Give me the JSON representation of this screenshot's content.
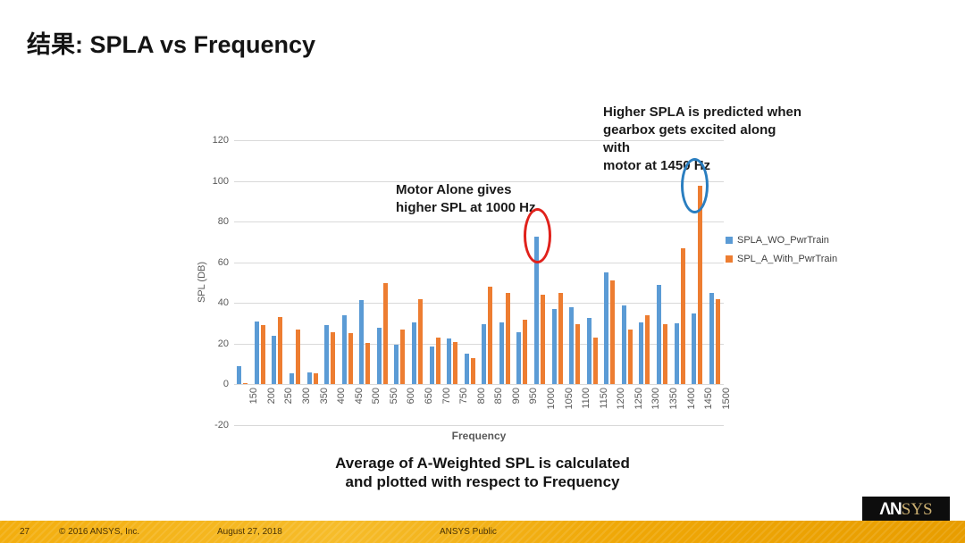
{
  "slide": {
    "title": "结果: SPLA vs Frequency",
    "caption": "Average of A-Weighted SPL is calculated\nand plotted with respect to Frequency"
  },
  "chart_data": {
    "type": "bar",
    "categories": [
      "150",
      "200",
      "250",
      "300",
      "350",
      "400",
      "450",
      "500",
      "550",
      "600",
      "650",
      "700",
      "750",
      "800",
      "850",
      "900",
      "950",
      "1000",
      "1050",
      "1100",
      "1150",
      "1200",
      "1250",
      "1300",
      "1350",
      "1400",
      "1450",
      "1500"
    ],
    "series": [
      {
        "name": "SPLA_WO_PwrTrain",
        "color": "#5B9BD5",
        "values": [
          9,
          31,
          24,
          5.5,
          6,
          29,
          34,
          41.5,
          28,
          19.5,
          30.5,
          18.5,
          22.5,
          15,
          29.5,
          30.5,
          25.5,
          72.5,
          37,
          38,
          32.5,
          55,
          39,
          30.5,
          49,
          30,
          35,
          45
        ]
      },
      {
        "name": "SPL_A_With_PwrTrain",
        "color": "#ED7D31",
        "values": [
          0.5,
          29,
          33,
          27,
          5.5,
          25.5,
          25,
          20.5,
          50,
          27,
          42,
          23,
          21,
          13,
          48,
          45,
          32,
          44,
          45,
          29.5,
          23,
          51,
          27,
          34,
          29.5,
          67,
          97.5,
          42
        ]
      }
    ],
    "title": "",
    "xlabel": "Frequency",
    "ylabel": "SPL (DB)",
    "ylim": [
      -20,
      120
    ],
    "yticks": [
      120,
      100,
      80,
      60,
      40,
      20,
      0,
      -20
    ],
    "grid": true,
    "legend_position": "right",
    "annotations": [
      {
        "text": "Motor Alone gives\nhigher SPL at 1000 Hz",
        "shape": "ellipse",
        "color": "#E0211B",
        "target_category": "1000",
        "target_series": "SPLA_WO_PwrTrain"
      },
      {
        "text": "Higher SPLA is predicted when\ngearbox gets excited along with\nmotor at 1450 Hz",
        "shape": "ellipse",
        "color": "#2A7EC0",
        "target_category": "1450",
        "target_series": "SPL_A_With_PwrTrain"
      }
    ]
  },
  "footer": {
    "page_number": "27",
    "copyright": "© 2016 ANSYS, Inc.",
    "date": "August 27, 2018",
    "classification": "ANSYS Public",
    "logo_part1": "ΛN",
    "logo_part2": "SYS"
  }
}
